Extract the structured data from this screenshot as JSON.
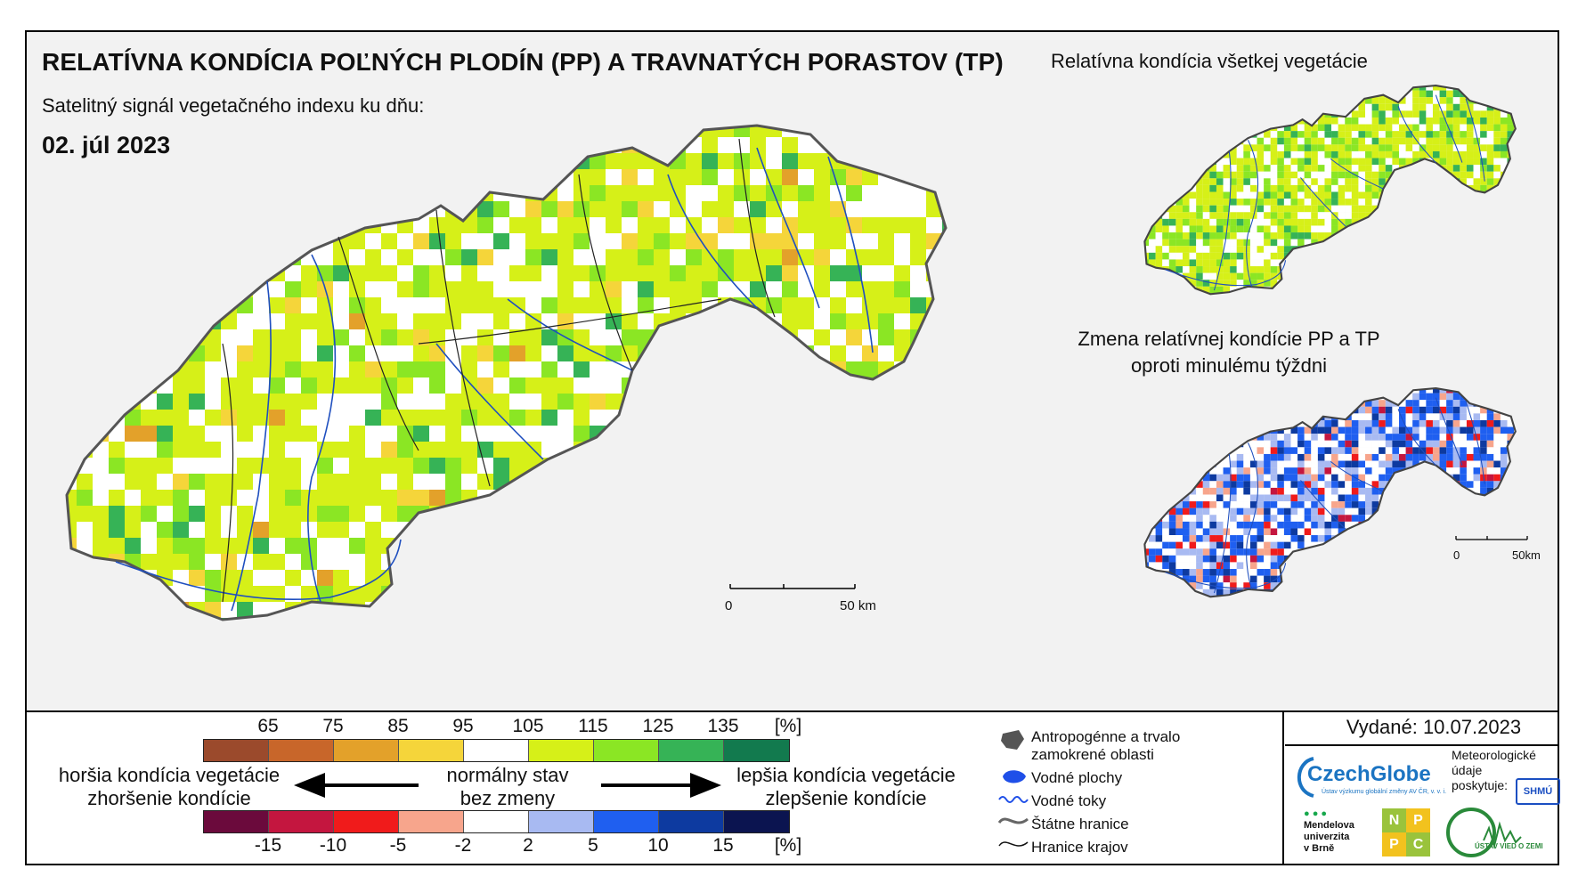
{
  "header": {
    "title": "RELATÍVNA KONDÍCIA POĽNÝCH PLODÍN (PP) A TRAVNATÝCH PORASTOV (TP)",
    "subtitle": "Satelitný signál vegetačného indexu ku dňu:",
    "date": "02. júl 2023"
  },
  "insets": {
    "top_title": "Relatívna kondícia všetkej vegetácie",
    "bottom_title_line1": "Zmena relatívnej kondície PP a TP",
    "bottom_title_line2": "oproti minulému týždni"
  },
  "scale_bars": {
    "main_zero": "0",
    "main_km": "50 km",
    "inset_zero": "0",
    "inset_km": "50km"
  },
  "legend": {
    "condition_ticks": [
      "65",
      "75",
      "85",
      "95",
      "105",
      "115",
      "125",
      "135",
      "[%]"
    ],
    "condition_colors": [
      "#9b4a2c",
      "#c8662a",
      "#e3a12a",
      "#f5d53a",
      "#ffffff",
      "#d6f018",
      "#8be624",
      "#36b356",
      "#127a4e"
    ],
    "worse_line1": "horšia kondícia vegetácie",
    "worse_line2": "zhoršenie kondície",
    "normal_line1": "normálny stav",
    "normal_line2": "bez zmeny",
    "better_line1": "lepšia kondícia vegetácie",
    "better_line2": "zlepšenie kondície",
    "change_ticks": [
      "-15",
      "-10",
      "-5",
      "-2",
      "2",
      "5",
      "10",
      "15",
      "[%]"
    ],
    "change_colors": [
      "#6b0a3c",
      "#c4163f",
      "#f01b1b",
      "#f7a58c",
      "#ffffff",
      "#a8baf2",
      "#1f5ff0",
      "#0d3aa0",
      "#0b1450"
    ]
  },
  "key": {
    "urban_line1": "Antropogénne a trvalo",
    "urban_line2": "zamokrené oblasti",
    "water_bodies": "Vodné plochy",
    "rivers": "Vodné toky",
    "state_border": "Štátne hranice",
    "region_border": "Hranice krajov"
  },
  "issued": "Vydané: 10.07.2023",
  "logos": {
    "czechglobe": "CzechGlobe",
    "czechglobe_sub": "Ústav výzkumu globální změny AV ČR, v. v. i.",
    "meteo_line1": "Meteorologické",
    "meteo_line2": "údaje",
    "meteo_line3": "poskytuje:",
    "shmu": "SHMÚ",
    "mendel_line1": "Mendelova",
    "mendel_line2": "univerzita",
    "mendel_line3": "v Brně",
    "nppc_letters": [
      "N",
      "P",
      "P",
      "C"
    ],
    "uvoz": "ÚSTAV VIED O ZEMI"
  }
}
